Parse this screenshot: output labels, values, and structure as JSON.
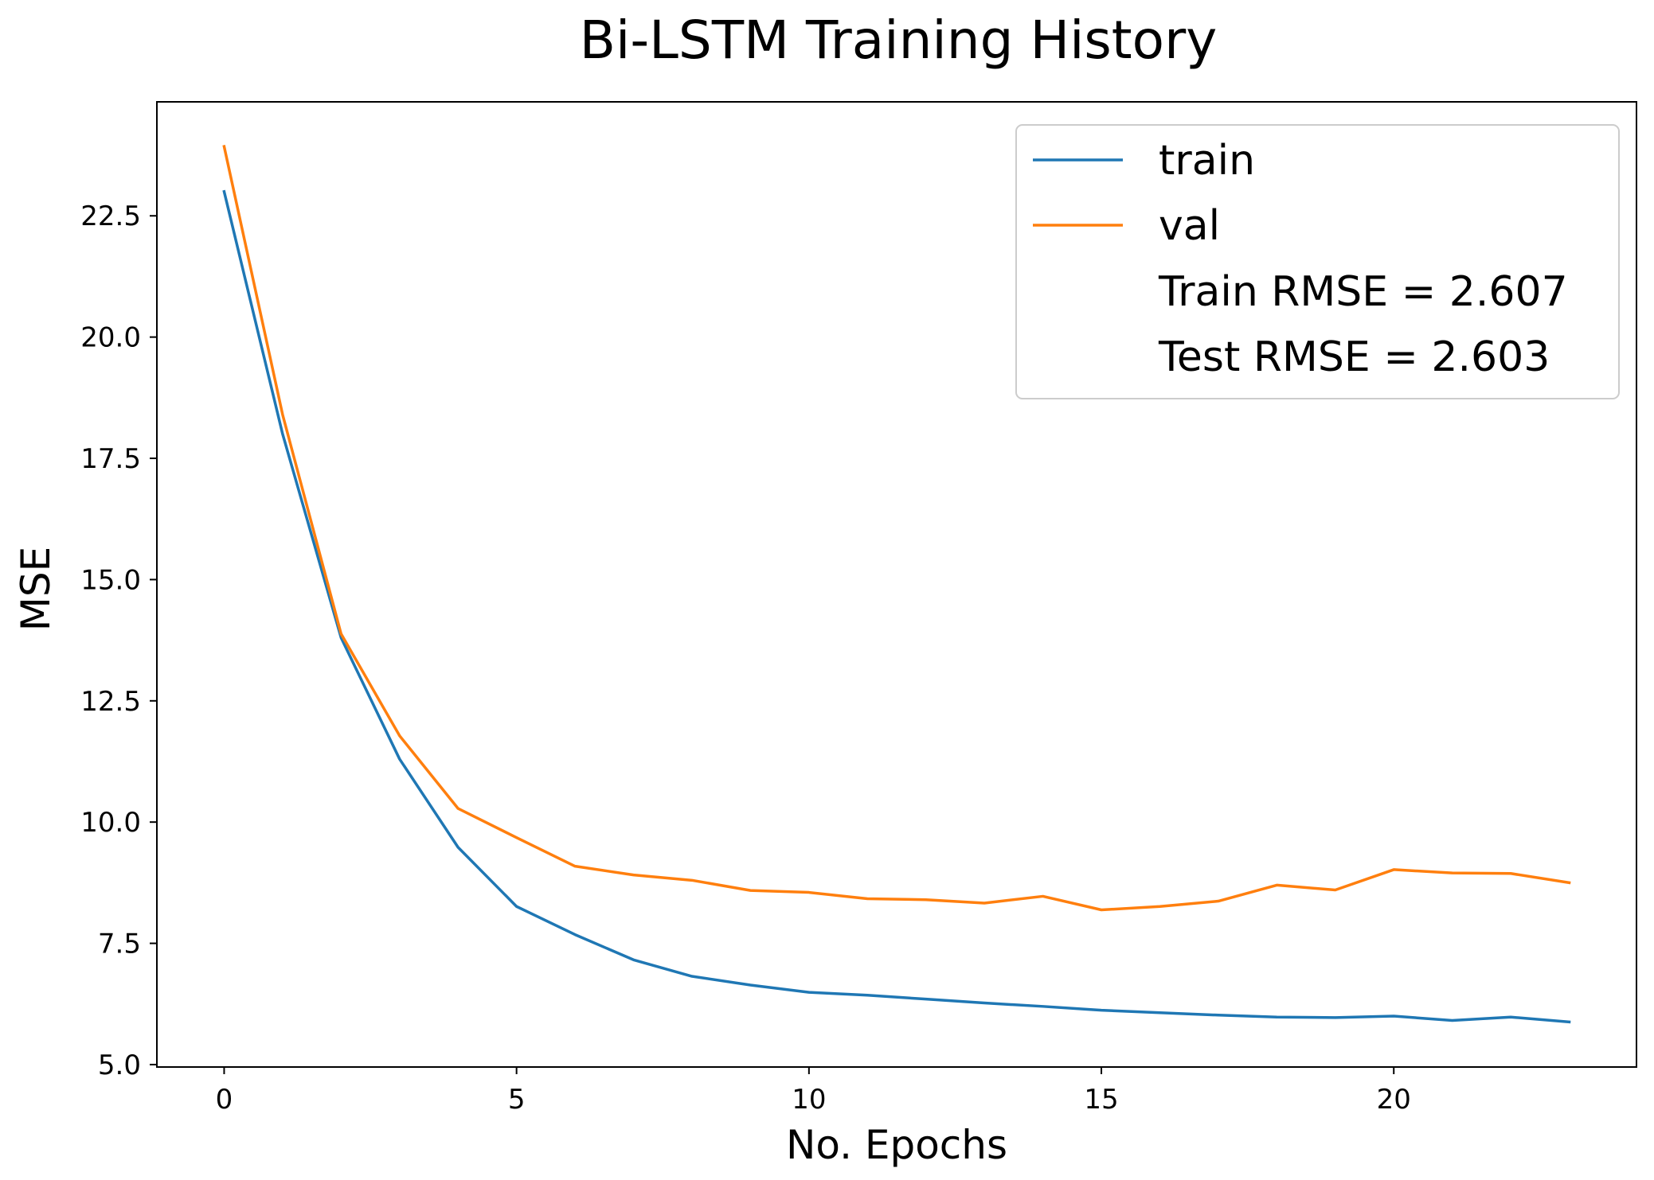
{
  "chart_data": {
    "type": "line",
    "title": "Bi-LSTM Training History",
    "xlabel": "No. Epochs",
    "ylabel": "MSE",
    "xlim": [
      -1.15,
      24.15
    ],
    "ylim": [
      4.95,
      24.85
    ],
    "xticks": [
      0,
      5,
      10,
      15,
      20
    ],
    "xtick_labels": [
      "0",
      "5",
      "10",
      "15",
      "20"
    ],
    "yticks": [
      5.0,
      7.5,
      10.0,
      12.5,
      15.0,
      17.5,
      20.0,
      22.5
    ],
    "ytick_labels": [
      "5.0",
      "7.5",
      "10.0",
      "12.5",
      "15.0",
      "17.5",
      "20.0",
      "22.5"
    ],
    "grid": false,
    "legend_position": "top-right",
    "x": [
      0,
      1,
      2,
      3,
      4,
      5,
      6,
      7,
      8,
      9,
      10,
      11,
      12,
      13,
      14,
      15,
      16,
      17,
      18,
      19,
      20,
      21,
      22,
      23
    ],
    "series": [
      {
        "name": "train",
        "color": "#1f77b4",
        "values": [
          23.0,
          18.0,
          13.8,
          11.3,
          9.48,
          8.26,
          7.68,
          7.16,
          6.82,
          6.64,
          6.49,
          6.43,
          6.35,
          6.27,
          6.2,
          6.12,
          6.07,
          6.02,
          5.98,
          5.97,
          6.0,
          5.91,
          5.98,
          5.88
        ]
      },
      {
        "name": "val",
        "color": "#ff7f0e",
        "values": [
          23.93,
          18.4,
          13.88,
          11.78,
          10.28,
          9.68,
          9.09,
          8.91,
          8.8,
          8.59,
          8.55,
          8.42,
          8.4,
          8.33,
          8.47,
          8.19,
          8.26,
          8.37,
          8.7,
          8.6,
          9.02,
          8.95,
          8.94,
          8.75
        ]
      }
    ],
    "legend_text": [
      "Train RMSE = 2.607",
      "Test RMSE = 2.603"
    ]
  }
}
